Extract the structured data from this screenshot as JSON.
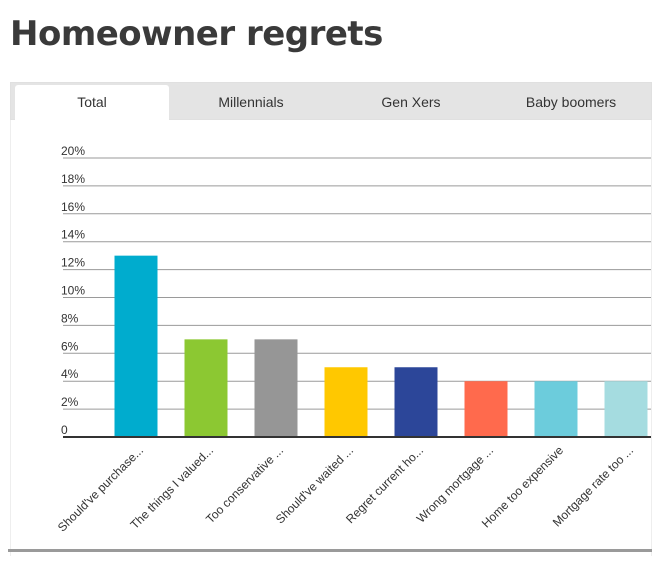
{
  "page": {
    "title": "Homeowner regrets"
  },
  "tabs": [
    {
      "label": "Total",
      "active": true
    },
    {
      "label": "Millennials",
      "active": false
    },
    {
      "label": "Gen Xers",
      "active": false
    },
    {
      "label": "Baby boomers",
      "active": false
    }
  ],
  "chart_data": {
    "type": "bar",
    "categories": [
      "Should've purchase...",
      "The things I valued...",
      "Too conservative ...",
      "Should've waited ...",
      "Regret current ho...",
      "Wrong mortgage ...",
      "Home too expensive",
      "Mortgage rate too ..."
    ],
    "values": [
      13,
      7,
      7,
      5,
      5,
      4,
      4,
      4
    ],
    "colors": [
      "#00acce",
      "#8cc832",
      "#969696",
      "#ffc800",
      "#2c4699",
      "#ff6a4d",
      "#6cccdc",
      "#a5dce0"
    ],
    "ylim": [
      0,
      20
    ],
    "yticks": [
      "0",
      "2%",
      "4%",
      "6%",
      "8%",
      "10%",
      "12%",
      "14%",
      "16%",
      "18%",
      "20%"
    ],
    "ytick_values": [
      0,
      2,
      4,
      6,
      8,
      10,
      12,
      14,
      16,
      18,
      20
    ],
    "grid": true,
    "title": "",
    "xlabel": "",
    "ylabel": ""
  }
}
